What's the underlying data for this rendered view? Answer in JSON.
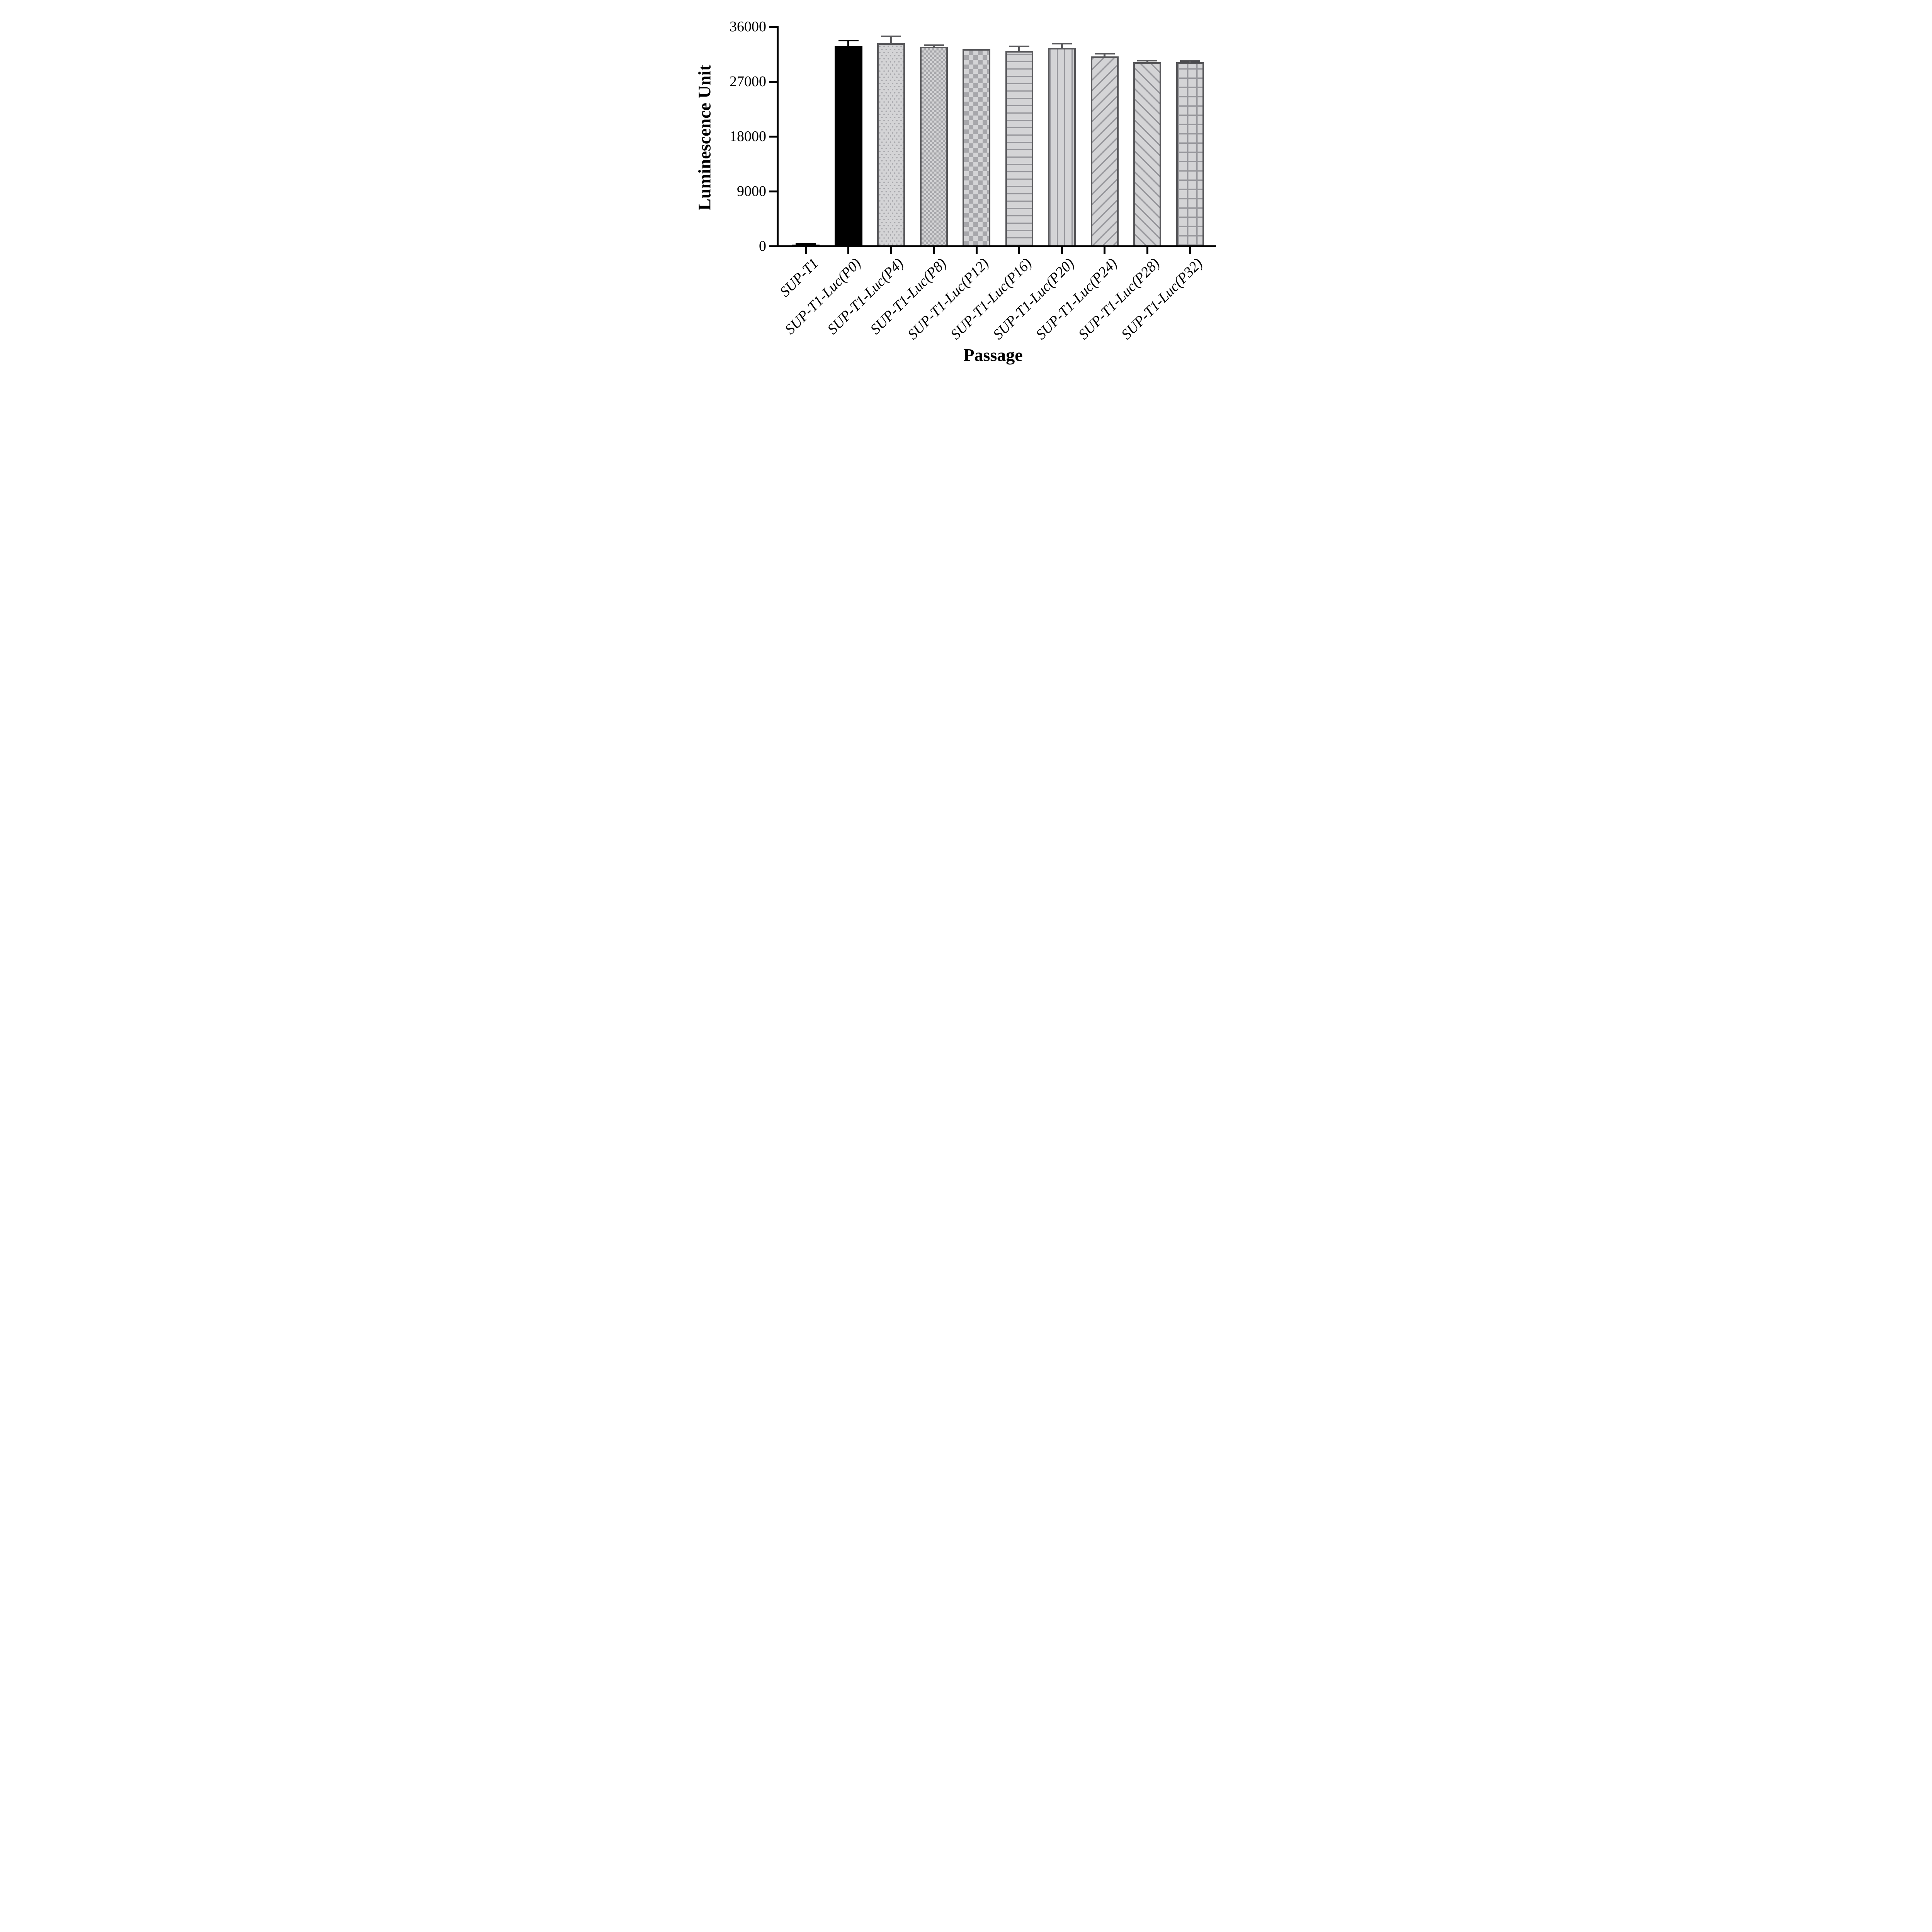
{
  "chart_data": {
    "type": "bar",
    "title": "",
    "xlabel": "Passage",
    "ylabel": "Luminescence Unit",
    "categories": [
      "SUP-T1",
      "SUP-T1-Luc(P0)",
      "SUP-T1-Luc(P4)",
      "SUP-T1-Luc(P8)",
      "SUP-T1-Luc(P12)",
      "SUP-T1-Luc(P16)",
      "SUP-T1-Luc(P20)",
      "SUP-T1-Luc(P24)",
      "SUP-T1-Luc(P28)",
      "SUP-T1-Luc(P32)"
    ],
    "values": [
      250,
      32800,
      33300,
      32700,
      32300,
      32000,
      32500,
      31100,
      30150,
      30150
    ],
    "errors_sd_upper": [
      120,
      950,
      1100,
      250,
      0,
      750,
      700,
      450,
      280,
      200
    ],
    "bar_patterns": [
      "solid-black",
      "solid-black",
      "dots",
      "checker-fine",
      "checker-coarse",
      "hlines",
      "vlines",
      "diag-up",
      "diag-down",
      "grid"
    ],
    "yticks": [
      0,
      9000,
      18000,
      27000,
      36000
    ],
    "ytick_labels": [
      "0",
      "9000",
      "18000",
      "27000",
      "36000"
    ],
    "ylim": [
      0,
      36000
    ],
    "grid": false,
    "legend_position": "none",
    "error_bar_style": "upper whisker with cap",
    "xtick_label_rotation_deg": -45,
    "xtick_label_style": "italic serif",
    "axis_title_style": "bold serif"
  },
  "colors": {
    "background": "#ffffff",
    "axis": "#000000",
    "black_bar": "#000000",
    "bar_fill": "#d4d4d6",
    "pattern_dark": "#a7a7ab",
    "pattern_line": "#97979c",
    "bar_border": "#58585b"
  }
}
